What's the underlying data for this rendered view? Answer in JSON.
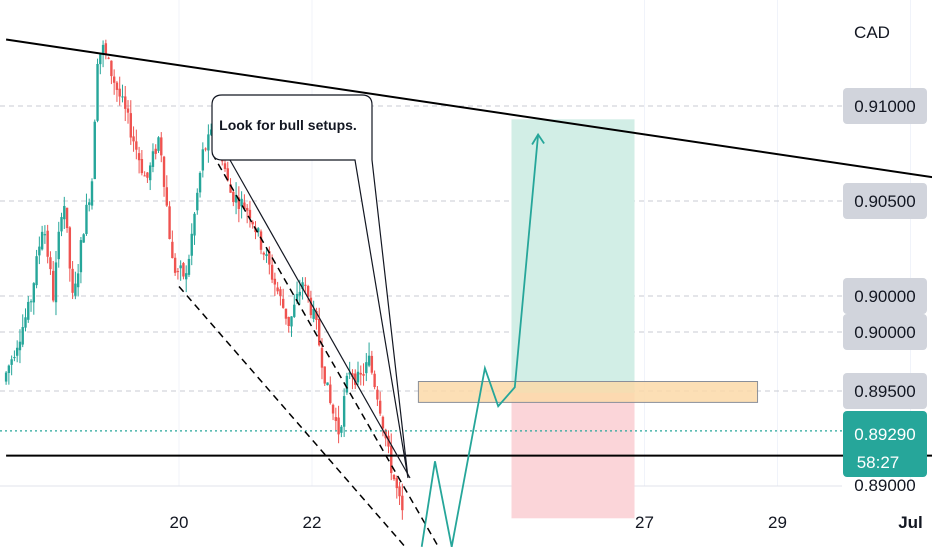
{
  "currency_label": "CAD",
  "annotation_text": "Look for bull setups.",
  "colors": {
    "bull": "#26a69a",
    "bear": "#ef5350",
    "trendline": "#000000",
    "price_tag_bg": "#d1d4dc",
    "current_price_bg": "#26a69a",
    "profit_zone": "#d2eee6",
    "loss_zone": "#fbd5d9",
    "entry_zone": "#fcd9a8",
    "current_line": "#26a69a"
  },
  "chart_data": {
    "type": "candlestick",
    "price_scale_labels": [
      {
        "value": 0.91,
        "label": "0.91000"
      },
      {
        "value": 0.905,
        "label": "0.90500"
      },
      {
        "value": 0.9,
        "label": "0.90000"
      },
      {
        "value": 0.9,
        "label": "0.90000"
      },
      {
        "value": 0.895,
        "label": "0.89500"
      }
    ],
    "current_price": {
      "label": "0.89290",
      "countdown": "58:27",
      "value": 0.8929
    },
    "partial_bottom_label": "0.89000",
    "x_tick_labels": [
      {
        "day": 20,
        "label": "20"
      },
      {
        "day": 22,
        "label": "22"
      },
      {
        "day": 27,
        "label": "27"
      },
      {
        "day": 29,
        "label": "29"
      },
      {
        "day": 31,
        "label": "Jul"
      }
    ],
    "x_range_days": [
      17.4,
      31.9
    ],
    "y_range": [
      0.8868,
      0.9155
    ],
    "candle_day_range": [
      17.4,
      23.4
    ],
    "candle_price_path": [
      [
        17.4,
        0.8955
      ],
      [
        17.8,
        0.8995
      ],
      [
        18.0,
        0.904
      ],
      [
        18.15,
        0.9
      ],
      [
        18.3,
        0.9055
      ],
      [
        18.45,
        0.8995
      ],
      [
        18.6,
        0.9035
      ],
      [
        18.75,
        0.9065
      ],
      [
        18.8,
        0.9125
      ],
      [
        18.9,
        0.913
      ],
      [
        19.05,
        0.9115
      ],
      [
        19.25,
        0.9095
      ],
      [
        19.55,
        0.906
      ],
      [
        19.75,
        0.9085
      ],
      [
        19.95,
        0.9015
      ],
      [
        20.15,
        0.901
      ],
      [
        20.4,
        0.9075
      ],
      [
        20.6,
        0.909
      ],
      [
        20.8,
        0.9055
      ],
      [
        21.1,
        0.9045
      ],
      [
        21.4,
        0.9015
      ],
      [
        21.7,
        0.8985
      ],
      [
        21.9,
        0.9008
      ],
      [
        22.1,
        0.8985
      ],
      [
        22.3,
        0.8945
      ],
      [
        22.45,
        0.8928
      ],
      [
        22.6,
        0.8962
      ],
      [
        22.75,
        0.8955
      ],
      [
        22.9,
        0.8966
      ],
      [
        23.05,
        0.8945
      ],
      [
        23.2,
        0.8915
      ],
      [
        23.4,
        0.8885
      ]
    ],
    "trendlines": [
      {
        "name": "upper-trendline",
        "points": [
          [
            17.4,
            0.9135
          ],
          [
            32.2,
            0.9058
          ]
        ]
      },
      {
        "name": "lower-support-line",
        "points": [
          [
            17.4,
            0.8916
          ],
          [
            32.2,
            0.8916
          ]
        ]
      },
      {
        "name": "channel-upper-dashed",
        "points": [
          [
            20.5,
            0.9075
          ],
          [
            23.9,
            0.8868
          ]
        ]
      },
      {
        "name": "channel-lower-dashed",
        "points": [
          [
            20.0,
            0.9005
          ],
          [
            23.4,
            0.8868
          ]
        ]
      }
    ],
    "projection_path": [
      [
        23.65,
        0.8868
      ],
      [
        23.85,
        0.8913
      ],
      [
        24.1,
        0.8868
      ],
      [
        24.6,
        0.8962
      ],
      [
        24.8,
        0.8942
      ],
      [
        25.05,
        0.8952
      ],
      [
        25.4,
        0.9085
      ]
    ],
    "long_position": {
      "start_day": 25.0,
      "end_day": 26.85,
      "target": 0.9093,
      "entry": 0.8949,
      "stop": 0.8883
    },
    "entry_zone": {
      "start_day": 23.6,
      "end_day": 28.7,
      "top": 0.8955,
      "bottom": 0.8944
    },
    "current_price_line": 0.8929
  }
}
